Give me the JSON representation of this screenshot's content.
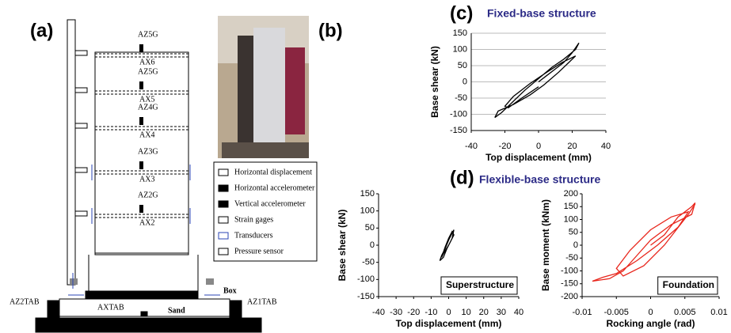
{
  "panels": {
    "a": "(a)",
    "b": "(b)",
    "c": "(c)",
    "d": "(d)",
    "d_title": "Flexible-base structure"
  },
  "diagram": {
    "sensors": [
      {
        "az": "AZ5G",
        "ax": "AX6"
      },
      {
        "az": "AZ5G",
        "ax": "AX5"
      },
      {
        "az": "AZ4G",
        "ax": "AX4"
      },
      {
        "az": "AZ3G",
        "ax": "AX3"
      },
      {
        "az": "AZ2G",
        "ax": "AX2"
      }
    ],
    "box": "Box",
    "sand": "Sand",
    "axtab": "AXTAB",
    "az2tab": "AZ2TAB",
    "az1tab": "AZ1TAB"
  },
  "legend": [
    "Horizontal displacement",
    "Horizontal accelerometer",
    "Vertical accelerometer",
    "Strain gages",
    "Transducers",
    "Pressure sensor"
  ],
  "chart_data": [
    {
      "type": "line",
      "title": "Fixed-base structure",
      "x_label": "Top displacement (mm)",
      "y_label": "Base shear (kN)",
      "color": "#000000",
      "grid": true,
      "xlim": [
        -40,
        40
      ],
      "xticks": [
        -40,
        -20,
        0,
        20,
        40
      ],
      "ylim": [
        -150,
        150
      ],
      "yticks": [
        -150,
        -100,
        -50,
        0,
        50,
        100,
        150
      ],
      "x": [
        0,
        5,
        10,
        15,
        20,
        24,
        22,
        15,
        8,
        0,
        -8,
        -15,
        -22,
        -26,
        -24,
        -15,
        -5,
        3,
        12,
        18,
        22,
        14,
        5,
        -5,
        -15,
        -20,
        -18,
        -10,
        0
      ],
      "values": [
        0,
        20,
        40,
        60,
        90,
        120,
        100,
        70,
        45,
        10,
        -25,
        -60,
        -95,
        -110,
        -90,
        -70,
        -40,
        -10,
        30,
        60,
        80,
        60,
        30,
        -5,
        -45,
        -75,
        -80,
        -50,
        -15
      ]
    },
    {
      "type": "line",
      "annotation": "Superstructure",
      "x_label": "Top displacement (mm)",
      "y_label": "Base shear (kN)",
      "color": "#000000",
      "grid": false,
      "xlim": [
        -40,
        40
      ],
      "xticks": [
        -40,
        -30,
        -20,
        -10,
        0,
        10,
        20,
        30,
        40
      ],
      "ylim": [
        -150,
        150
      ],
      "yticks": [
        -150,
        -100,
        -50,
        0,
        50,
        100,
        150
      ],
      "x": [
        0,
        2,
        3,
        2,
        0,
        -2,
        -4,
        -5,
        -3,
        -1,
        1,
        3,
        2,
        0,
        -2,
        -4,
        -3,
        0
      ],
      "values": [
        0,
        20,
        45,
        35,
        15,
        -10,
        -30,
        -45,
        -35,
        -10,
        10,
        30,
        40,
        20,
        -5,
        -35,
        -25,
        0
      ]
    },
    {
      "type": "line",
      "annotation": "Foundation",
      "x_label": "Rocking angle (rad)",
      "y_label": "Base moment (kNm)",
      "color": "#e8261c",
      "grid": false,
      "xlim": [
        -0.01,
        0.01
      ],
      "xticks": [
        -0.01,
        -0.005,
        0,
        0.005,
        0.01
      ],
      "ylim": [
        -200,
        200
      ],
      "yticks": [
        -200,
        -150,
        -100,
        -50,
        0,
        50,
        100,
        150,
        200
      ],
      "x": [
        0,
        0.002,
        0.004,
        0.006,
        0.0065,
        0.006,
        0.003,
        0,
        -0.002,
        -0.004,
        -0.006,
        -0.0085,
        -0.007,
        -0.005,
        -0.002,
        0.001,
        0.004,
        0.0055,
        0.003,
        0,
        -0.003,
        -0.005,
        -0.004,
        -0.001,
        0.002,
        0.0055,
        0.0065
      ],
      "values": [
        0,
        40,
        110,
        150,
        165,
        120,
        80,
        20,
        -40,
        -100,
        -130,
        -140,
        -125,
        -110,
        -60,
        0,
        70,
        130,
        110,
        60,
        -20,
        -90,
        -120,
        -80,
        0,
        120,
        160
      ]
    }
  ]
}
